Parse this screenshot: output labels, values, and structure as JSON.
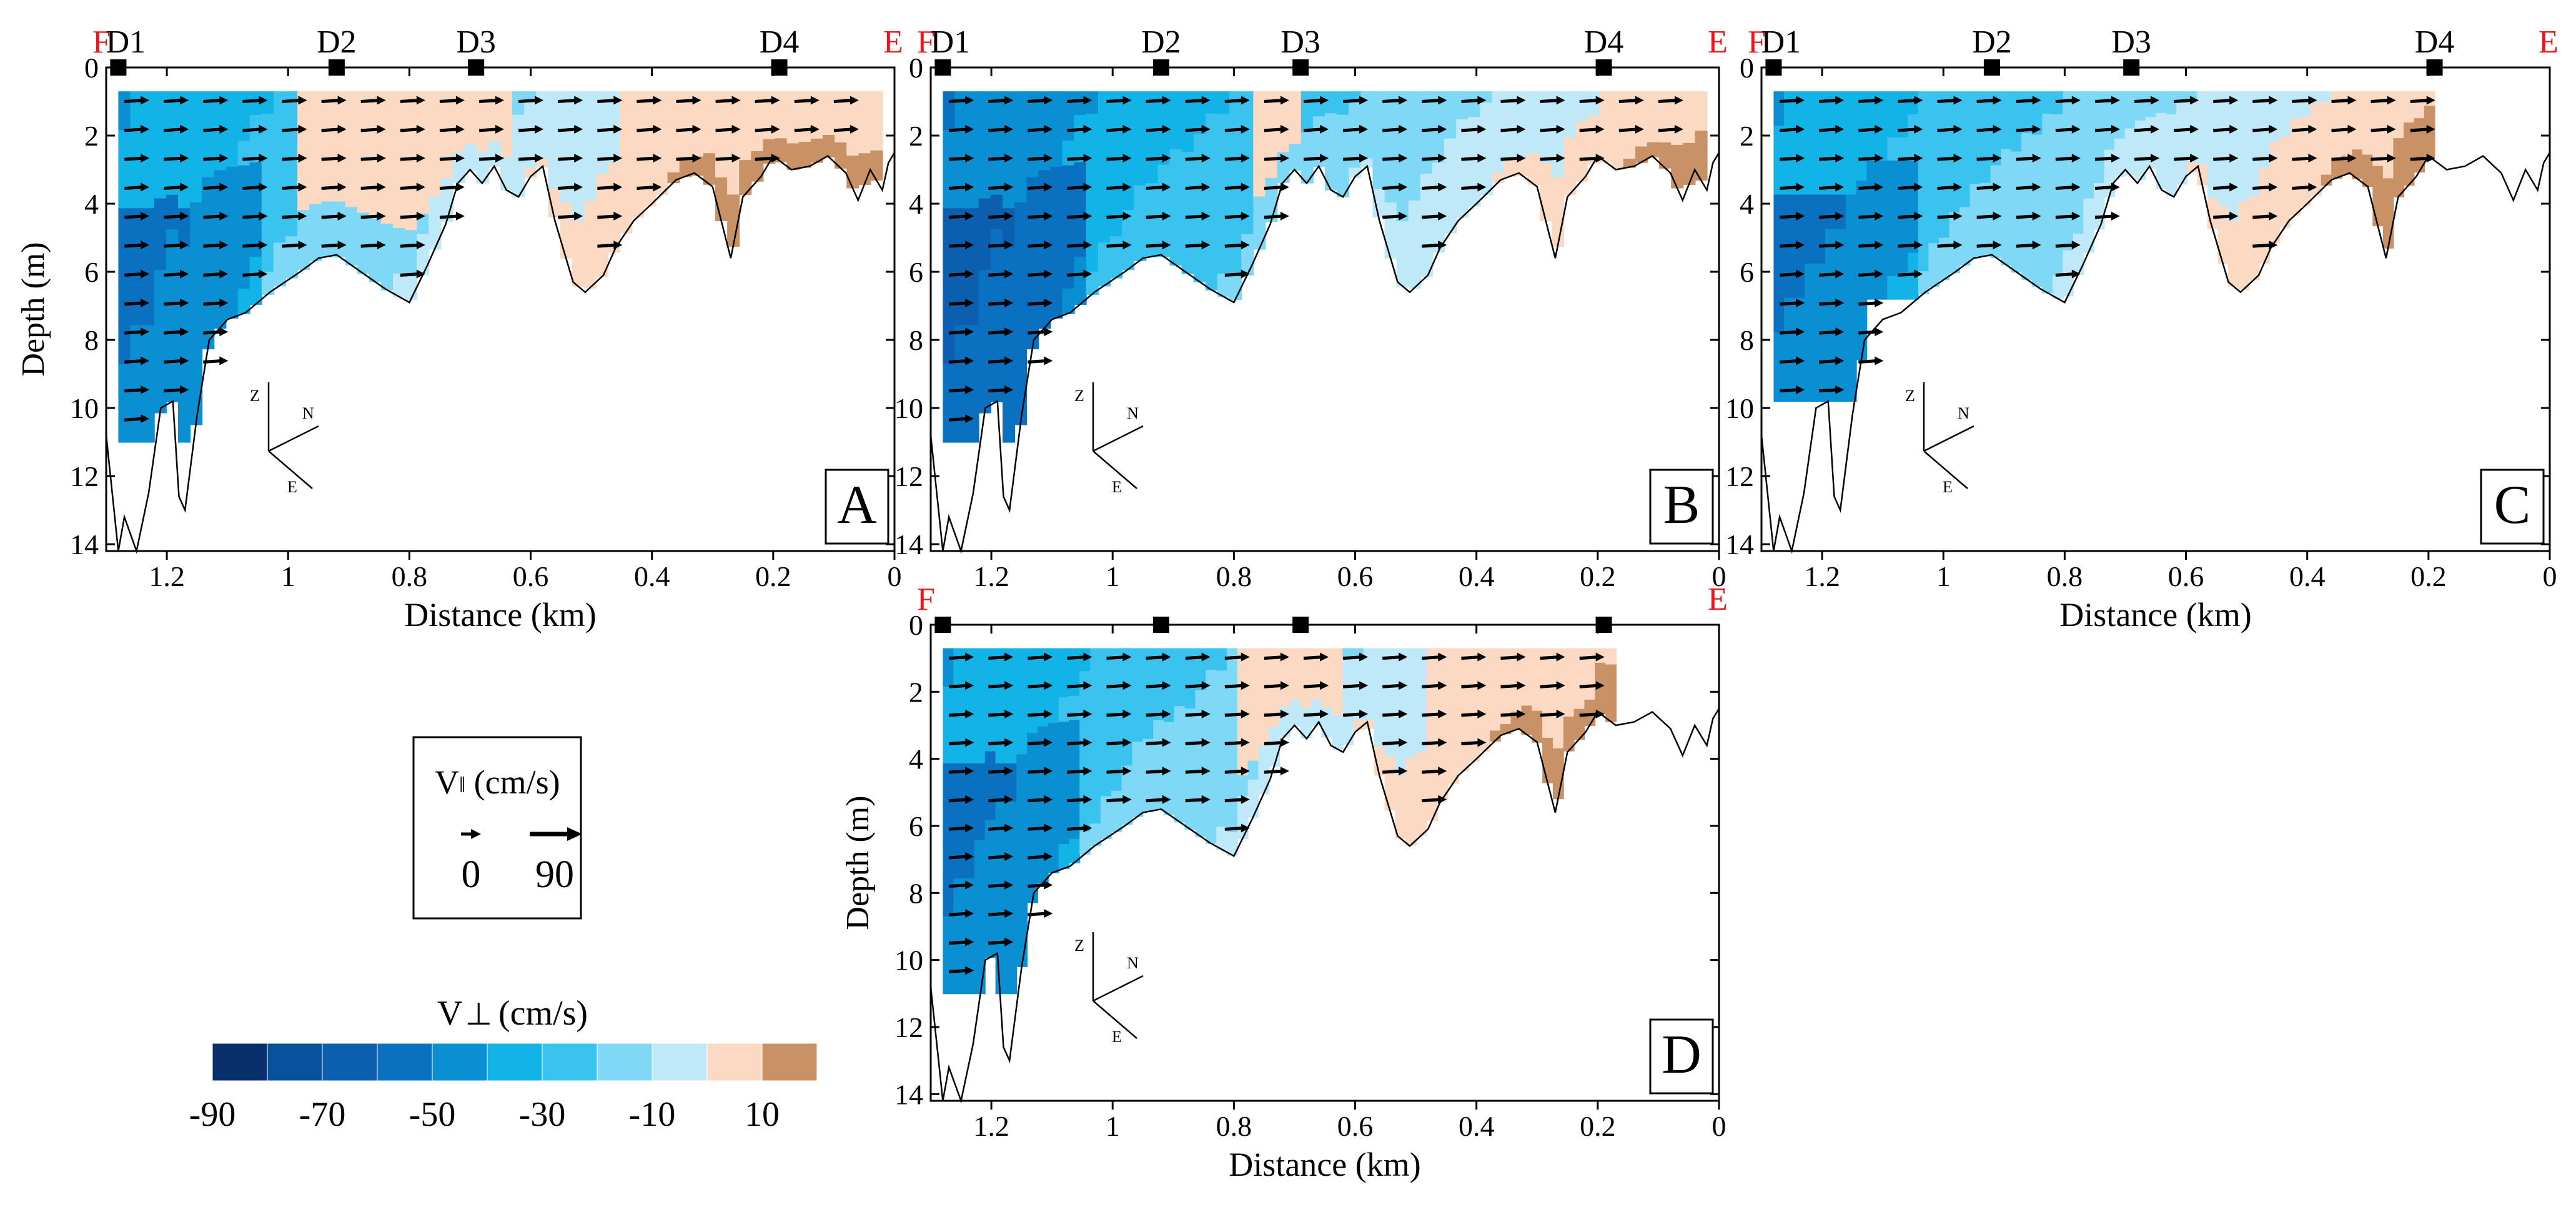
{
  "chart_data": {
    "type": "heatmap",
    "description_units": {
      "x": "km",
      "y": "m"
    },
    "axes": {
      "xlabel": "Distance (km)",
      "ylabel": "Depth (m)",
      "xlim": [
        1.3,
        0
      ],
      "ylim": [
        0,
        14.2
      ],
      "xticks": [
        1.2,
        1,
        0.8,
        0.6,
        0.4,
        0.2,
        0
      ],
      "xtick_labels": [
        "1.2",
        "1",
        "0.8",
        "0.6",
        "0.4",
        "0.2",
        "0"
      ],
      "yticks": [
        0,
        2,
        4,
        6,
        8,
        10,
        12,
        14
      ],
      "ytick_labels": [
        "0",
        "2",
        "4",
        "6",
        "8",
        "10",
        "12",
        "14"
      ]
    },
    "end_labels": {
      "left": "F",
      "right": "E"
    },
    "stations": [
      {
        "name": "D1",
        "x": 1.28
      },
      {
        "name": "D2",
        "x": 0.92
      },
      {
        "name": "D3",
        "x": 0.69
      },
      {
        "name": "D4",
        "x": 0.19
      }
    ],
    "bathymetry": [
      [
        1.3,
        10.8
      ],
      [
        1.29,
        12.5
      ],
      [
        1.28,
        14.2
      ],
      [
        1.27,
        13.2
      ],
      [
        1.25,
        14.2
      ],
      [
        1.23,
        12.5
      ],
      [
        1.21,
        10
      ],
      [
        1.19,
        9.8
      ],
      [
        1.18,
        12.6
      ],
      [
        1.17,
        13
      ],
      [
        1.15,
        10.2
      ],
      [
        1.13,
        8
      ],
      [
        1.1,
        7.4
      ],
      [
        1.07,
        7.2
      ],
      [
        1.03,
        6.6
      ],
      [
        0.98,
        6
      ],
      [
        0.95,
        5.6
      ],
      [
        0.92,
        5.5
      ],
      [
        0.88,
        6
      ],
      [
        0.84,
        6.5
      ],
      [
        0.8,
        6.9
      ],
      [
        0.77,
        5.8
      ],
      [
        0.74,
        4.6
      ],
      [
        0.72,
        3.4
      ],
      [
        0.7,
        3
      ],
      [
        0.68,
        3.4
      ],
      [
        0.66,
        2.9
      ],
      [
        0.64,
        3.6
      ],
      [
        0.62,
        3.8
      ],
      [
        0.6,
        3.2
      ],
      [
        0.58,
        2.9
      ],
      [
        0.56,
        4.5
      ],
      [
        0.53,
        6.3
      ],
      [
        0.51,
        6.6
      ],
      [
        0.48,
        6.1
      ],
      [
        0.46,
        5.3
      ],
      [
        0.43,
        4.5
      ],
      [
        0.4,
        4
      ],
      [
        0.36,
        3.3
      ],
      [
        0.33,
        3.1
      ],
      [
        0.3,
        3.5
      ],
      [
        0.28,
        4.9
      ],
      [
        0.27,
        5.6
      ],
      [
        0.25,
        3.8
      ],
      [
        0.22,
        3.2
      ],
      [
        0.2,
        2.6
      ],
      [
        0.17,
        3
      ],
      [
        0.14,
        2.9
      ],
      [
        0.11,
        2.6
      ],
      [
        0.08,
        3.1
      ],
      [
        0.06,
        3.9
      ],
      [
        0.04,
        3
      ],
      [
        0.02,
        3.6
      ],
      [
        0.01,
        2.8
      ],
      [
        0,
        2.5
      ]
    ],
    "panels": [
      {
        "label": "A",
        "station_labels": true,
        "x_axis_label": true,
        "x_range": [
          1.28,
          0.02
        ],
        "max_depth_fn": "full",
        "base_velocity": -30,
        "positive_zones": [
          {
            "x": [
              0.98,
              0.64
            ],
            "v": 8
          },
          {
            "x": [
              0.45,
              0.02
            ],
            "v": 6
          }
        ],
        "vectors": [
          {
            "x": 1.27,
            "depth": 1,
            "dx": 0.06,
            "dz": 0.0
          },
          {
            "x": 1.2,
            "depth": 1,
            "dx": 0.08,
            "dz": 0.0
          },
          {
            "x": 1.0,
            "depth": 2,
            "dx": 0.07,
            "dz": 0.0
          },
          {
            "x": 0.8,
            "depth": 3,
            "dx": 0.05,
            "dz": -0.1
          }
        ]
      },
      {
        "label": "B",
        "station_labels": true,
        "x_axis_label": false,
        "x_range": [
          1.28,
          0.02
        ],
        "max_depth_fn": "full",
        "base_velocity": -40,
        "positive_zones": [
          {
            "x": [
              0.76,
              0.68
            ],
            "v": 6
          },
          {
            "x": [
              0.2,
              0.14
            ],
            "v": 6
          }
        ],
        "vectors": [
          {
            "x": 1.27,
            "depth": 1,
            "dx": 0.09,
            "dz": 0.0
          },
          {
            "x": 1.1,
            "depth": 2,
            "dx": 0.09,
            "dz": 0.0
          }
        ]
      },
      {
        "label": "C",
        "station_labels": true,
        "x_axis_label": true,
        "x_range": [
          1.28,
          0.19
        ],
        "max_depth_fn": "limited",
        "base_velocity": -30,
        "positive_zones": [],
        "vectors": [
          {
            "x": 1.27,
            "depth": 1,
            "dx": 0.08,
            "dz": 0.0
          }
        ]
      },
      {
        "label": "D",
        "station_labels": false,
        "x_axis_label": true,
        "x_range": [
          1.28,
          0.17
        ],
        "max_depth_fn": "full",
        "base_velocity": -30,
        "positive_zones": [
          {
            "x": [
              0.8,
              0.62
            ],
            "v": 8
          },
          {
            "x": [
              0.48,
              0.2
            ],
            "v": 6
          }
        ],
        "vectors": [
          {
            "x": 1.27,
            "depth": 1,
            "dx": 0.07,
            "dz": 0.0
          }
        ]
      }
    ],
    "orientation_axes": {
      "labels": [
        "Z",
        "N",
        "E"
      ]
    },
    "vector_legend": {
      "title": "V",
      "title_symbol": "‖",
      "title_units": "(cm/s)",
      "values": [
        "0",
        "90"
      ]
    },
    "colorbar": {
      "title": "V",
      "title_symbol": "⊥",
      "title_units": "(cm/s)",
      "colors": [
        "#08306b",
        "#08519c",
        "#0b5fae",
        "#0a70c0",
        "#0b8fd3",
        "#12b3e6",
        "#3bc3ef",
        "#7fd8f5",
        "#bfe9f8",
        "#fcd9c2",
        "#c89166"
      ],
      "bounds": [
        -100,
        -80,
        -70,
        -60,
        -50,
        -40,
        -30,
        -20,
        -10,
        0,
        10,
        20
      ],
      "tick_labels": [
        "-90",
        "-70",
        "-50",
        "-30",
        "-10",
        "10"
      ]
    }
  }
}
